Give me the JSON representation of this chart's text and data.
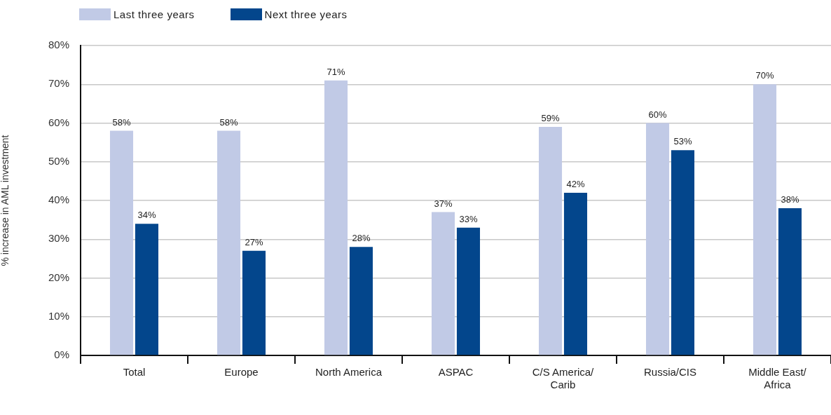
{
  "chart_data": {
    "type": "bar",
    "categories": [
      "Total",
      "Europe",
      "North America",
      "ASPAC",
      "C/S America/\nCarib",
      "Russia/CIS",
      "Middle East/\nAfrica"
    ],
    "series": [
      {
        "name": "Last three years",
        "color": "#c1cae6",
        "values": [
          58,
          58,
          71,
          37,
          59,
          60,
          70
        ],
        "value_labels": [
          "58%",
          "58%",
          "71%",
          "37%",
          "59%",
          "60%",
          "70%"
        ]
      },
      {
        "name": "Next three years",
        "color": "#03468c",
        "values": [
          34,
          27,
          28,
          33,
          42,
          53,
          38
        ],
        "value_labels": [
          "34%",
          "27%",
          "28%",
          "33%",
          "42%",
          "53%",
          "38%"
        ]
      }
    ],
    "ylabel": "% increase in AML investment",
    "ylim": [
      0,
      80
    ],
    "yticks": [
      {
        "value": 0,
        "label": "0%"
      },
      {
        "value": 10,
        "label": "10%"
      },
      {
        "value": 20,
        "label": "20%"
      },
      {
        "value": 30,
        "label": "30%"
      },
      {
        "value": 40,
        "label": "40%"
      },
      {
        "value": 50,
        "label": "50%"
      },
      {
        "value": 60,
        "label": "60%"
      },
      {
        "value": 70,
        "label": "70%"
      },
      {
        "value": 80,
        "label": "80%"
      }
    ],
    "grid": "y",
    "legend": "top left"
  }
}
